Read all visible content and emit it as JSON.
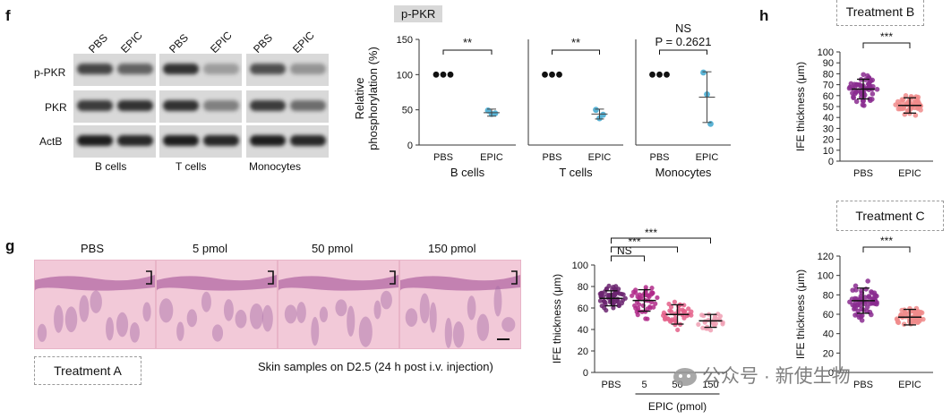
{
  "panel_f": {
    "letter": "f",
    "blot": {
      "lane_labels": [
        "PBS",
        "EPIC",
        "PBS",
        "EPIC",
        "PBS",
        "EPIC"
      ],
      "row_labels": [
        "p-PKR",
        "PKR",
        "ActB"
      ],
      "group_labels": [
        "B cells",
        "T cells",
        "Monocytes"
      ]
    },
    "header_tag": "p-PKR",
    "ylabel_line1": "Relative",
    "ylabel_line2": "phosphorylation (%)"
  },
  "panel_g": {
    "letter": "g",
    "histo_titles": [
      "PBS",
      "5 pmol",
      "50 pmol",
      "150 pmol"
    ],
    "treatment_label": "Treatment  A",
    "caption": "Skin samples on D2.5 (24 h post i.v. injection)"
  },
  "panel_h": {
    "letter": "h",
    "treatment_b": "Treatment  B",
    "treatment_c": "Treatment  C"
  },
  "watermark": "公众号 · 新使生物",
  "chart_data": [
    {
      "type": "scatter",
      "id": "f-bcells",
      "categories": [
        "PBS",
        "EPIC"
      ],
      "xlabel": "B cells",
      "ylabel": "Relative phosphorylation (%)",
      "ylim": [
        0,
        150
      ],
      "yticks": [
        0,
        50,
        100,
        150
      ],
      "points": [
        [
          100,
          100,
          100
        ],
        [
          49,
          44,
          45
        ]
      ],
      "mean": [
        100,
        46
      ],
      "sd": [
        0,
        5
      ],
      "significance": "**",
      "colors": [
        "#111111",
        "#5ab4d6"
      ]
    },
    {
      "type": "scatter",
      "id": "f-tcells",
      "categories": [
        "PBS",
        "EPIC"
      ],
      "xlabel": "T cells",
      "ylim": [
        0,
        150
      ],
      "points": [
        [
          100,
          100,
          100
        ],
        [
          50,
          38,
          43
        ]
      ],
      "mean": [
        100,
        44
      ],
      "sd": [
        0,
        7
      ],
      "significance": "**",
      "colors": [
        "#111111",
        "#5ab4d6"
      ]
    },
    {
      "type": "scatter",
      "id": "f-monocytes",
      "categories": [
        "PBS",
        "EPIC"
      ],
      "xlabel": "Monocytes",
      "ylim": [
        0,
        150
      ],
      "points": [
        [
          100,
          100,
          100
        ],
        [
          103,
          72,
          30
        ]
      ],
      "mean": [
        100,
        68
      ],
      "sd": [
        0,
        36
      ],
      "significance": "NS",
      "annotation": "P = 0.2621",
      "colors": [
        "#111111",
        "#5ab4d6"
      ]
    },
    {
      "type": "scatter",
      "id": "g-ife",
      "categories": [
        "PBS",
        "5",
        "50",
        "150"
      ],
      "xlabel": "EPIC (pmol)",
      "ylabel": "IFE thickness (μm)",
      "ylim": [
        0,
        100
      ],
      "yticks": [
        0,
        20,
        40,
        60,
        80,
        100
      ],
      "mean": [
        69,
        67,
        54,
        48
      ],
      "sd": [
        7,
        10,
        9,
        6
      ],
      "spread": [
        [
          55,
          90
        ],
        [
          48,
          90
        ],
        [
          38,
          72
        ],
        [
          38,
          58
        ]
      ],
      "n": [
        60,
        45,
        40,
        25
      ],
      "comparisons": [
        {
          "a": 0,
          "b": 1,
          "label": "NS"
        },
        {
          "a": 0,
          "b": 2,
          "label": "***"
        },
        {
          "a": 0,
          "b": 3,
          "label": "***"
        }
      ],
      "colors": [
        "#6b2470",
        "#b02a8a",
        "#e4608a",
        "#f0a0b4"
      ]
    },
    {
      "type": "scatter",
      "id": "h-b",
      "categories": [
        "PBS",
        "EPIC"
      ],
      "ylabel": "IFE thickness (μm)",
      "ylim": [
        0,
        100
      ],
      "yticks": [
        0,
        10,
        20,
        30,
        40,
        50,
        60,
        70,
        80,
        90,
        100
      ],
      "mean": [
        66,
        51
      ],
      "sd": [
        9,
        7
      ],
      "spread": [
        [
          45,
          91
        ],
        [
          33,
          67
        ]
      ],
      "n": [
        60,
        50
      ],
      "significance": "***",
      "colors": [
        "#8a2b8f",
        "#f08b8b"
      ]
    },
    {
      "type": "scatter",
      "id": "h-c",
      "categories": [
        "PBS",
        "EPIC"
      ],
      "ylabel": "IFE thickness (μm)",
      "ylim": [
        0,
        120
      ],
      "yticks": [
        0,
        20,
        40,
        60,
        80,
        100,
        120
      ],
      "mean": [
        74,
        57
      ],
      "sd": [
        13,
        8
      ],
      "spread": [
        [
          48,
          104
        ],
        [
          42,
          72
        ]
      ],
      "n": [
        60,
        50
      ],
      "significance": "***",
      "colors": [
        "#8a2b8f",
        "#f08b8b"
      ]
    }
  ]
}
